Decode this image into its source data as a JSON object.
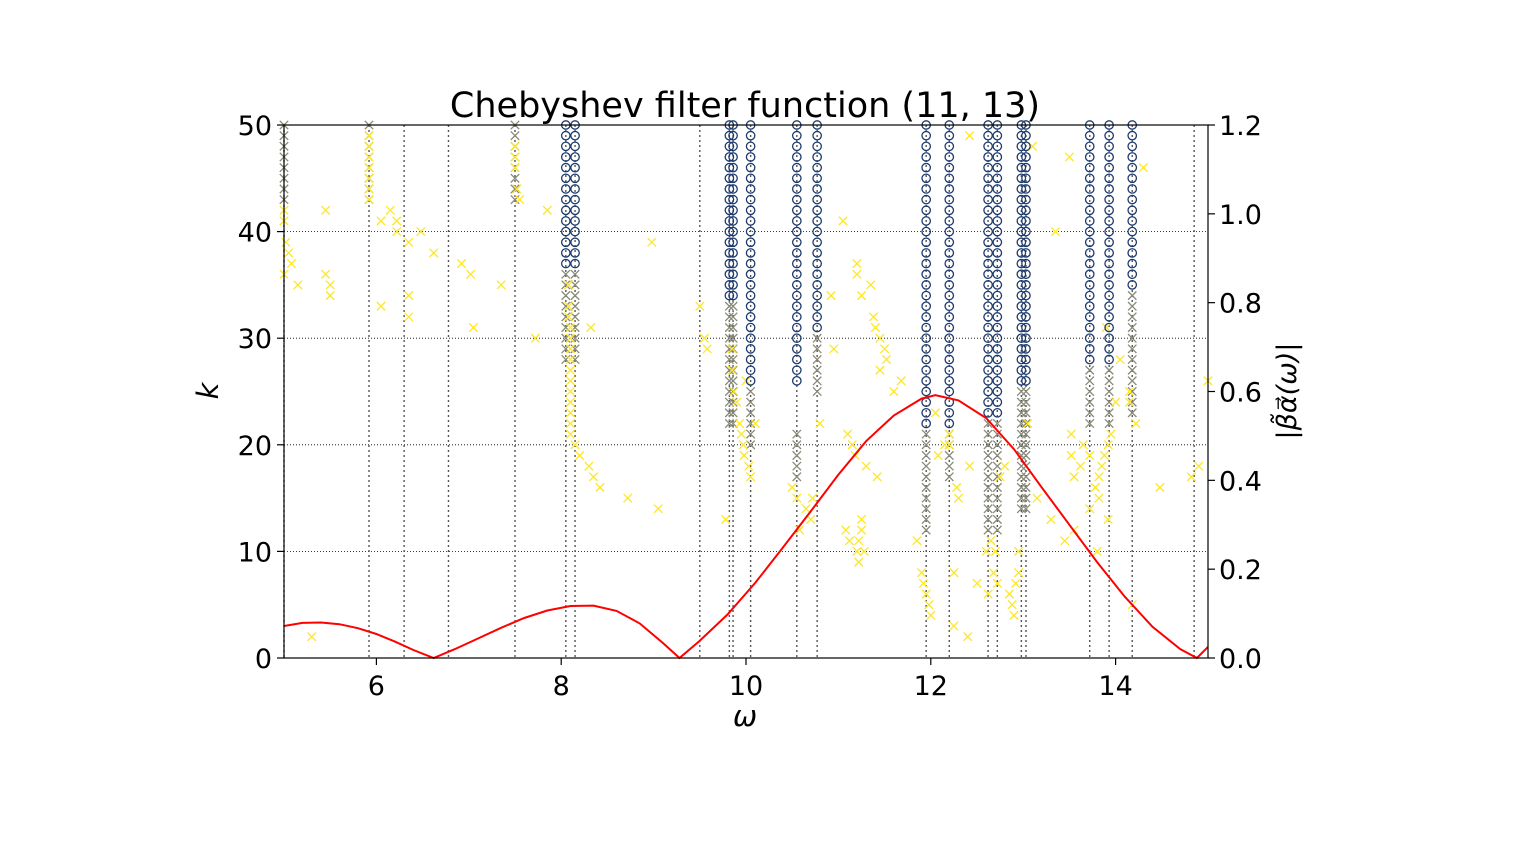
{
  "chart_data": {
    "type": "scatter",
    "title": "Chebyshev filter function (11, 13)",
    "xlabel": "ω",
    "ylabel": "k",
    "ylabel_right": "|β̃α⃗(ω)|",
    "xlim": [
      5.0,
      15.0
    ],
    "ylim": [
      0,
      50
    ],
    "ylim_right": [
      0.0,
      1.2
    ],
    "grid": "horizontal dotted",
    "xticks": [
      "6",
      "8",
      "10",
      "12",
      "14"
    ],
    "yticks": [
      "0",
      "10",
      "20",
      "30",
      "40",
      "50"
    ],
    "yticks_right": [
      "0.0",
      "0.2",
      "0.4",
      "0.6",
      "0.8",
      "1.0",
      "1.2"
    ],
    "colors": {
      "filter_curve": "#ff0000",
      "converged_circles": "#1c3a6e",
      "intermediate_crosses": "#8a8a7a",
      "scattered_crosses": "#fde725",
      "eigen_lines": "#555555",
      "grid": "#000000"
    },
    "vertical_lines_x": [
      5.0,
      5.92,
      6.3,
      6.78,
      7.5,
      8.05,
      8.15,
      9.5,
      9.82,
      9.86,
      10.05,
      10.55,
      10.77,
      11.95,
      12.2,
      12.62,
      12.72,
      12.98,
      13.03,
      13.72,
      13.93,
      14.18,
      14.85
    ],
    "series": [
      {
        "type": "line",
        "x": [
          5.0,
          5.2,
          5.4,
          5.6,
          5.8,
          6.0,
          6.2,
          6.4,
          6.62,
          6.85,
          7.1,
          7.35,
          7.6,
          7.85,
          8.1,
          8.35,
          8.6,
          8.85,
          9.1,
          9.28,
          9.5,
          9.8,
          10.1,
          10.4,
          10.7,
          11.0,
          11.3,
          11.6,
          11.9,
          12.05,
          12.3,
          12.6,
          12.9,
          13.2,
          13.5,
          13.8,
          14.1,
          14.4,
          14.7,
          14.88,
          15.0
        ],
        "y": [
          0.072,
          0.079,
          0.08,
          0.076,
          0.067,
          0.054,
          0.037,
          0.018,
          0.0,
          0.02,
          0.044,
          0.068,
          0.09,
          0.107,
          0.117,
          0.118,
          0.106,
          0.078,
          0.034,
          0.0,
          0.039,
          0.098,
          0.169,
          0.249,
          0.33,
          0.413,
          0.488,
          0.546,
          0.584,
          0.592,
          0.58,
          0.54,
          0.47,
          0.384,
          0.3,
          0.216,
          0.138,
          0.07,
          0.02,
          0.0,
          0.025
        ]
      },
      {
        "type": "columns",
        "marker": "o",
        "columns": [
          {
            "x": 8.05,
            "k_from": 37,
            "k_to": 50
          },
          {
            "x": 8.15,
            "k_from": 37,
            "k_to": 50
          },
          {
            "x": 9.82,
            "k_from": 34,
            "k_to": 50
          },
          {
            "x": 9.86,
            "k_from": 34,
            "k_to": 50
          },
          {
            "x": 10.05,
            "k_from": 26,
            "k_to": 50
          },
          {
            "x": 10.55,
            "k_from": 26,
            "k_to": 50
          },
          {
            "x": 10.77,
            "k_from": 31,
            "k_to": 50
          },
          {
            "x": 11.95,
            "k_from": 22,
            "k_to": 50
          },
          {
            "x": 12.2,
            "k_from": 22,
            "k_to": 50
          },
          {
            "x": 12.62,
            "k_from": 23,
            "k_to": 50
          },
          {
            "x": 12.72,
            "k_from": 23,
            "k_to": 50
          },
          {
            "x": 12.98,
            "k_from": 26,
            "k_to": 50
          },
          {
            "x": 13.03,
            "k_from": 26,
            "k_to": 50
          },
          {
            "x": 13.72,
            "k_from": 28,
            "k_to": 50
          },
          {
            "x": 13.93,
            "k_from": 28,
            "k_to": 50
          },
          {
            "x": 14.18,
            "k_from": 35,
            "k_to": 50
          }
        ]
      },
      {
        "type": "columns",
        "marker": "x",
        "columns": [
          {
            "x": 5.0,
            "k_from": 43,
            "k_to": 50
          },
          {
            "x": 5.92,
            "k_from": 43,
            "k_to": 50
          },
          {
            "x": 7.5,
            "k_from": 43,
            "k_to": 50
          },
          {
            "x": 8.05,
            "k_from": 28,
            "k_to": 36
          },
          {
            "x": 8.15,
            "k_from": 28,
            "k_to": 36
          },
          {
            "x": 9.82,
            "k_from": 22,
            "k_to": 33
          },
          {
            "x": 9.86,
            "k_from": 22,
            "k_to": 33
          },
          {
            "x": 10.05,
            "k_from": 20,
            "k_to": 25
          },
          {
            "x": 10.55,
            "k_from": 17,
            "k_to": 21
          },
          {
            "x": 10.77,
            "k_from": 25,
            "k_to": 30
          },
          {
            "x": 11.95,
            "k_from": 12,
            "k_to": 21
          },
          {
            "x": 12.2,
            "k_from": 17,
            "k_to": 21
          },
          {
            "x": 12.62,
            "k_from": 12,
            "k_to": 22
          },
          {
            "x": 12.72,
            "k_from": 12,
            "k_to": 22
          },
          {
            "x": 12.98,
            "k_from": 14,
            "k_to": 25
          },
          {
            "x": 13.03,
            "k_from": 14,
            "k_to": 25
          },
          {
            "x": 13.72,
            "k_from": 22,
            "k_to": 27
          },
          {
            "x": 13.93,
            "k_from": 22,
            "k_to": 27
          },
          {
            "x": 14.18,
            "k_from": 23,
            "k_to": 34
          }
        ]
      },
      {
        "type": "scatter",
        "marker": "x",
        "points": [
          [
            5.0,
            42
          ],
          [
            5.0,
            41
          ],
          [
            5.02,
            39
          ],
          [
            5.05,
            38
          ],
          [
            5.08,
            37
          ],
          [
            5.0,
            36
          ],
          [
            5.15,
            35
          ],
          [
            5.3,
            2
          ],
          [
            5.45,
            42
          ],
          [
            5.45,
            36
          ],
          [
            5.5,
            35
          ],
          [
            5.5,
            34
          ],
          [
            5.92,
            49
          ],
          [
            5.92,
            48
          ],
          [
            5.92,
            47
          ],
          [
            5.92,
            46
          ],
          [
            5.92,
            45
          ],
          [
            5.92,
            44
          ],
          [
            5.92,
            43
          ],
          [
            6.05,
            41
          ],
          [
            6.05,
            33
          ],
          [
            6.15,
            42
          ],
          [
            6.22,
            41
          ],
          [
            6.22,
            40
          ],
          [
            6.35,
            39
          ],
          [
            6.35,
            34
          ],
          [
            6.35,
            32
          ],
          [
            6.48,
            40
          ],
          [
            6.62,
            38
          ],
          [
            6.92,
            37
          ],
          [
            7.02,
            36
          ],
          [
            7.05,
            31
          ],
          [
            7.35,
            35
          ],
          [
            7.5,
            48
          ],
          [
            7.5,
            47
          ],
          [
            7.5,
            46
          ],
          [
            7.52,
            44
          ],
          [
            7.55,
            43
          ],
          [
            7.72,
            30
          ],
          [
            7.85,
            42
          ],
          [
            8.08,
            35
          ],
          [
            8.08,
            33
          ],
          [
            8.08,
            32
          ],
          [
            8.1,
            31
          ],
          [
            8.1,
            30
          ],
          [
            8.1,
            29
          ],
          [
            8.1,
            28
          ],
          [
            8.1,
            27
          ],
          [
            8.1,
            26
          ],
          [
            8.1,
            25
          ],
          [
            8.1,
            24
          ],
          [
            8.1,
            23
          ],
          [
            8.1,
            22
          ],
          [
            8.1,
            21
          ],
          [
            8.15,
            20
          ],
          [
            8.2,
            19
          ],
          [
            8.32,
            31
          ],
          [
            8.3,
            18
          ],
          [
            8.35,
            17
          ],
          [
            8.42,
            16
          ],
          [
            8.72,
            15
          ],
          [
            8.98,
            39
          ],
          [
            9.05,
            14
          ],
          [
            9.5,
            33
          ],
          [
            9.55,
            30
          ],
          [
            9.58,
            29
          ],
          [
            9.78,
            13
          ],
          [
            9.85,
            29
          ],
          [
            9.85,
            27
          ],
          [
            9.87,
            25
          ],
          [
            9.9,
            24
          ],
          [
            9.93,
            22
          ],
          [
            9.95,
            21
          ],
          [
            9.97,
            20
          ],
          [
            9.98,
            19
          ],
          [
            10.0,
            26
          ],
          [
            10.03,
            18
          ],
          [
            10.05,
            17
          ],
          [
            10.1,
            22
          ],
          [
            10.5,
            16
          ],
          [
            10.55,
            15
          ],
          [
            10.58,
            12
          ],
          [
            10.65,
            14
          ],
          [
            10.7,
            13
          ],
          [
            10.72,
            15
          ],
          [
            10.8,
            22
          ],
          [
            10.92,
            34
          ],
          [
            10.95,
            29
          ],
          [
            11.05,
            41
          ],
          [
            11.08,
            12
          ],
          [
            11.1,
            21
          ],
          [
            11.12,
            11
          ],
          [
            11.15,
            20
          ],
          [
            11.18,
            19
          ],
          [
            11.2,
            37
          ],
          [
            11.2,
            36
          ],
          [
            11.2,
            10
          ],
          [
            11.22,
            11
          ],
          [
            11.22,
            9
          ],
          [
            11.25,
            13
          ],
          [
            11.25,
            12
          ],
          [
            11.28,
            10
          ],
          [
            11.25,
            34
          ],
          [
            11.3,
            18
          ],
          [
            11.35,
            35
          ],
          [
            11.38,
            32
          ],
          [
            11.4,
            31
          ],
          [
            11.42,
            17
          ],
          [
            11.45,
            30
          ],
          [
            11.45,
            27
          ],
          [
            11.5,
            29
          ],
          [
            11.52,
            28
          ],
          [
            11.6,
            25
          ],
          [
            11.68,
            26
          ],
          [
            11.85,
            11
          ],
          [
            11.9,
            8
          ],
          [
            11.92,
            7
          ],
          [
            11.95,
            6
          ],
          [
            11.98,
            5
          ],
          [
            12.0,
            4
          ],
          [
            12.05,
            23
          ],
          [
            12.08,
            19
          ],
          [
            12.15,
            20
          ],
          [
            12.2,
            21
          ],
          [
            12.2,
            20
          ],
          [
            12.25,
            8
          ],
          [
            12.25,
            3
          ],
          [
            12.28,
            16
          ],
          [
            12.3,
            15
          ],
          [
            12.4,
            2
          ],
          [
            12.42,
            18
          ],
          [
            12.42,
            49
          ],
          [
            12.5,
            7
          ],
          [
            12.6,
            10
          ],
          [
            12.62,
            6
          ],
          [
            12.65,
            11
          ],
          [
            12.68,
            8
          ],
          [
            12.7,
            10
          ],
          [
            12.72,
            7
          ],
          [
            12.75,
            17
          ],
          [
            12.8,
            18
          ],
          [
            12.85,
            6
          ],
          [
            12.88,
            5
          ],
          [
            12.9,
            4
          ],
          [
            12.92,
            7
          ],
          [
            12.95,
            8
          ],
          [
            12.95,
            10
          ],
          [
            13.05,
            22
          ],
          [
            13.1,
            48
          ],
          [
            13.15,
            15
          ],
          [
            13.3,
            13
          ],
          [
            13.35,
            40
          ],
          [
            13.45,
            11
          ],
          [
            13.5,
            47
          ],
          [
            13.52,
            21
          ],
          [
            13.52,
            19
          ],
          [
            13.55,
            12
          ],
          [
            13.55,
            17
          ],
          [
            13.62,
            18
          ],
          [
            13.65,
            20
          ],
          [
            13.72,
            14
          ],
          [
            13.72,
            19
          ],
          [
            13.78,
            16
          ],
          [
            13.8,
            10
          ],
          [
            13.82,
            15
          ],
          [
            13.82,
            17
          ],
          [
            13.85,
            18
          ],
          [
            13.88,
            19
          ],
          [
            13.9,
            31
          ],
          [
            13.92,
            13
          ],
          [
            13.92,
            20
          ],
          [
            13.95,
            21
          ],
          [
            14.0,
            24
          ],
          [
            14.05,
            28
          ],
          [
            14.15,
            25
          ],
          [
            14.15,
            24
          ],
          [
            14.18,
            5
          ],
          [
            14.22,
            22
          ],
          [
            14.3,
            46
          ],
          [
            14.48,
            16
          ],
          [
            14.82,
            17
          ],
          [
            14.9,
            18
          ],
          [
            15.0,
            26
          ]
        ]
      }
    ]
  }
}
